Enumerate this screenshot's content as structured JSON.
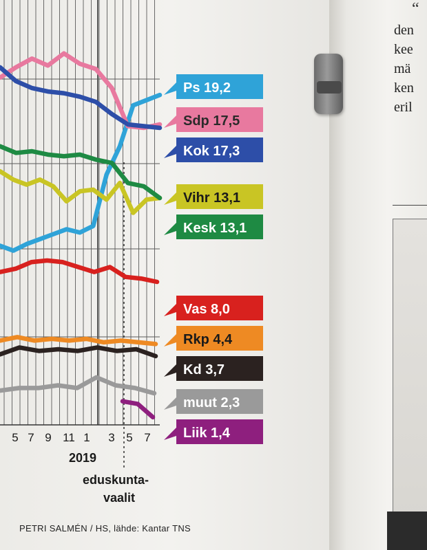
{
  "chart_data": {
    "type": "line",
    "x_tick_labels": [
      "5",
      "7",
      "9",
      "11",
      "1",
      "3",
      "5",
      "7"
    ],
    "year_label": "2019",
    "event_label": [
      "eduskunta-",
      "vaalit"
    ],
    "credit": "PETRI SALMÉN / HS, lähde: Kantar TNS",
    "series": [
      {
        "name": "Ps",
        "value_label": "19,2",
        "color": "#2fa3d8",
        "text_color": "#ffffff",
        "values": [
          10.2,
          9.9,
          10.3,
          10.6,
          10.9,
          11.2,
          11.0,
          11.4,
          14.5,
          16.2,
          18.6,
          18.9,
          19.2
        ]
      },
      {
        "name": "Sdp",
        "value_label": "17,5",
        "color": "#e8799f",
        "text_color": "#2a2a2a",
        "values": [
          20.2,
          20.8,
          21.3,
          20.9,
          21.6,
          21.0,
          20.7,
          19.6,
          17.4,
          17.3,
          17.5
        ]
      },
      {
        "name": "Kok",
        "value_label": "17,3",
        "color": "#2d4ea8",
        "text_color": "#ffffff",
        "values": [
          20.8,
          20.0,
          19.6,
          19.4,
          19.3,
          19.1,
          18.8,
          18.1,
          17.5,
          17.4,
          17.3
        ]
      },
      {
        "name": "Vihr",
        "value_label": "13,1",
        "color": "#c9c524",
        "text_color": "#1a1a1a",
        "values": [
          14.7,
          14.2,
          13.9,
          14.2,
          13.8,
          12.9,
          13.5,
          13.6,
          13.0,
          14.0,
          12.2,
          13.0,
          13.1
        ]
      },
      {
        "name": "Kesk",
        "value_label": "13,1",
        "color": "#1e8a43",
        "text_color": "#ffffff",
        "values": [
          16.2,
          15.8,
          15.9,
          15.7,
          15.6,
          15.7,
          15.4,
          15.2,
          14.0,
          13.8,
          13.1
        ]
      },
      {
        "name": "Vas",
        "value_label": "8,0",
        "color": "#d8211e",
        "text_color": "#ffffff",
        "values": [
          8.6,
          8.8,
          9.2,
          9.3,
          9.2,
          8.9,
          8.6,
          8.9,
          8.3,
          8.2,
          8.0
        ]
      },
      {
        "name": "Rkp",
        "value_label": "4,4",
        "color": "#ee8a23",
        "text_color": "#1a1a1a",
        "values": [
          4.6,
          4.8,
          4.6,
          4.7,
          4.6,
          4.7,
          4.5,
          4.6,
          4.5,
          4.4
        ]
      },
      {
        "name": "Kd",
        "value_label": "3,7",
        "color": "#2b2220",
        "text_color": "#ffffff",
        "values": [
          3.8,
          4.2,
          4.0,
          4.1,
          4.0,
          4.2,
          4.0,
          4.1,
          3.7
        ]
      },
      {
        "name": "muut",
        "value_label": "2,3",
        "color": "#9a9a9a",
        "text_color": "#ffffff",
        "values": [
          2.4,
          2.5,
          2.5,
          2.6,
          2.5,
          2.9,
          2.6,
          2.5,
          2.3
        ]
      },
      {
        "name": "Liik",
        "value_label": "1,4",
        "color": "#8e1f7e",
        "text_color": "#ffffff",
        "values": [
          2.0,
          1.9,
          1.4
        ]
      }
    ]
  },
  "next_page": {
    "lines": [
      "den",
      "kee",
      "mä",
      "ken",
      "eril"
    ],
    "quote": "“"
  }
}
